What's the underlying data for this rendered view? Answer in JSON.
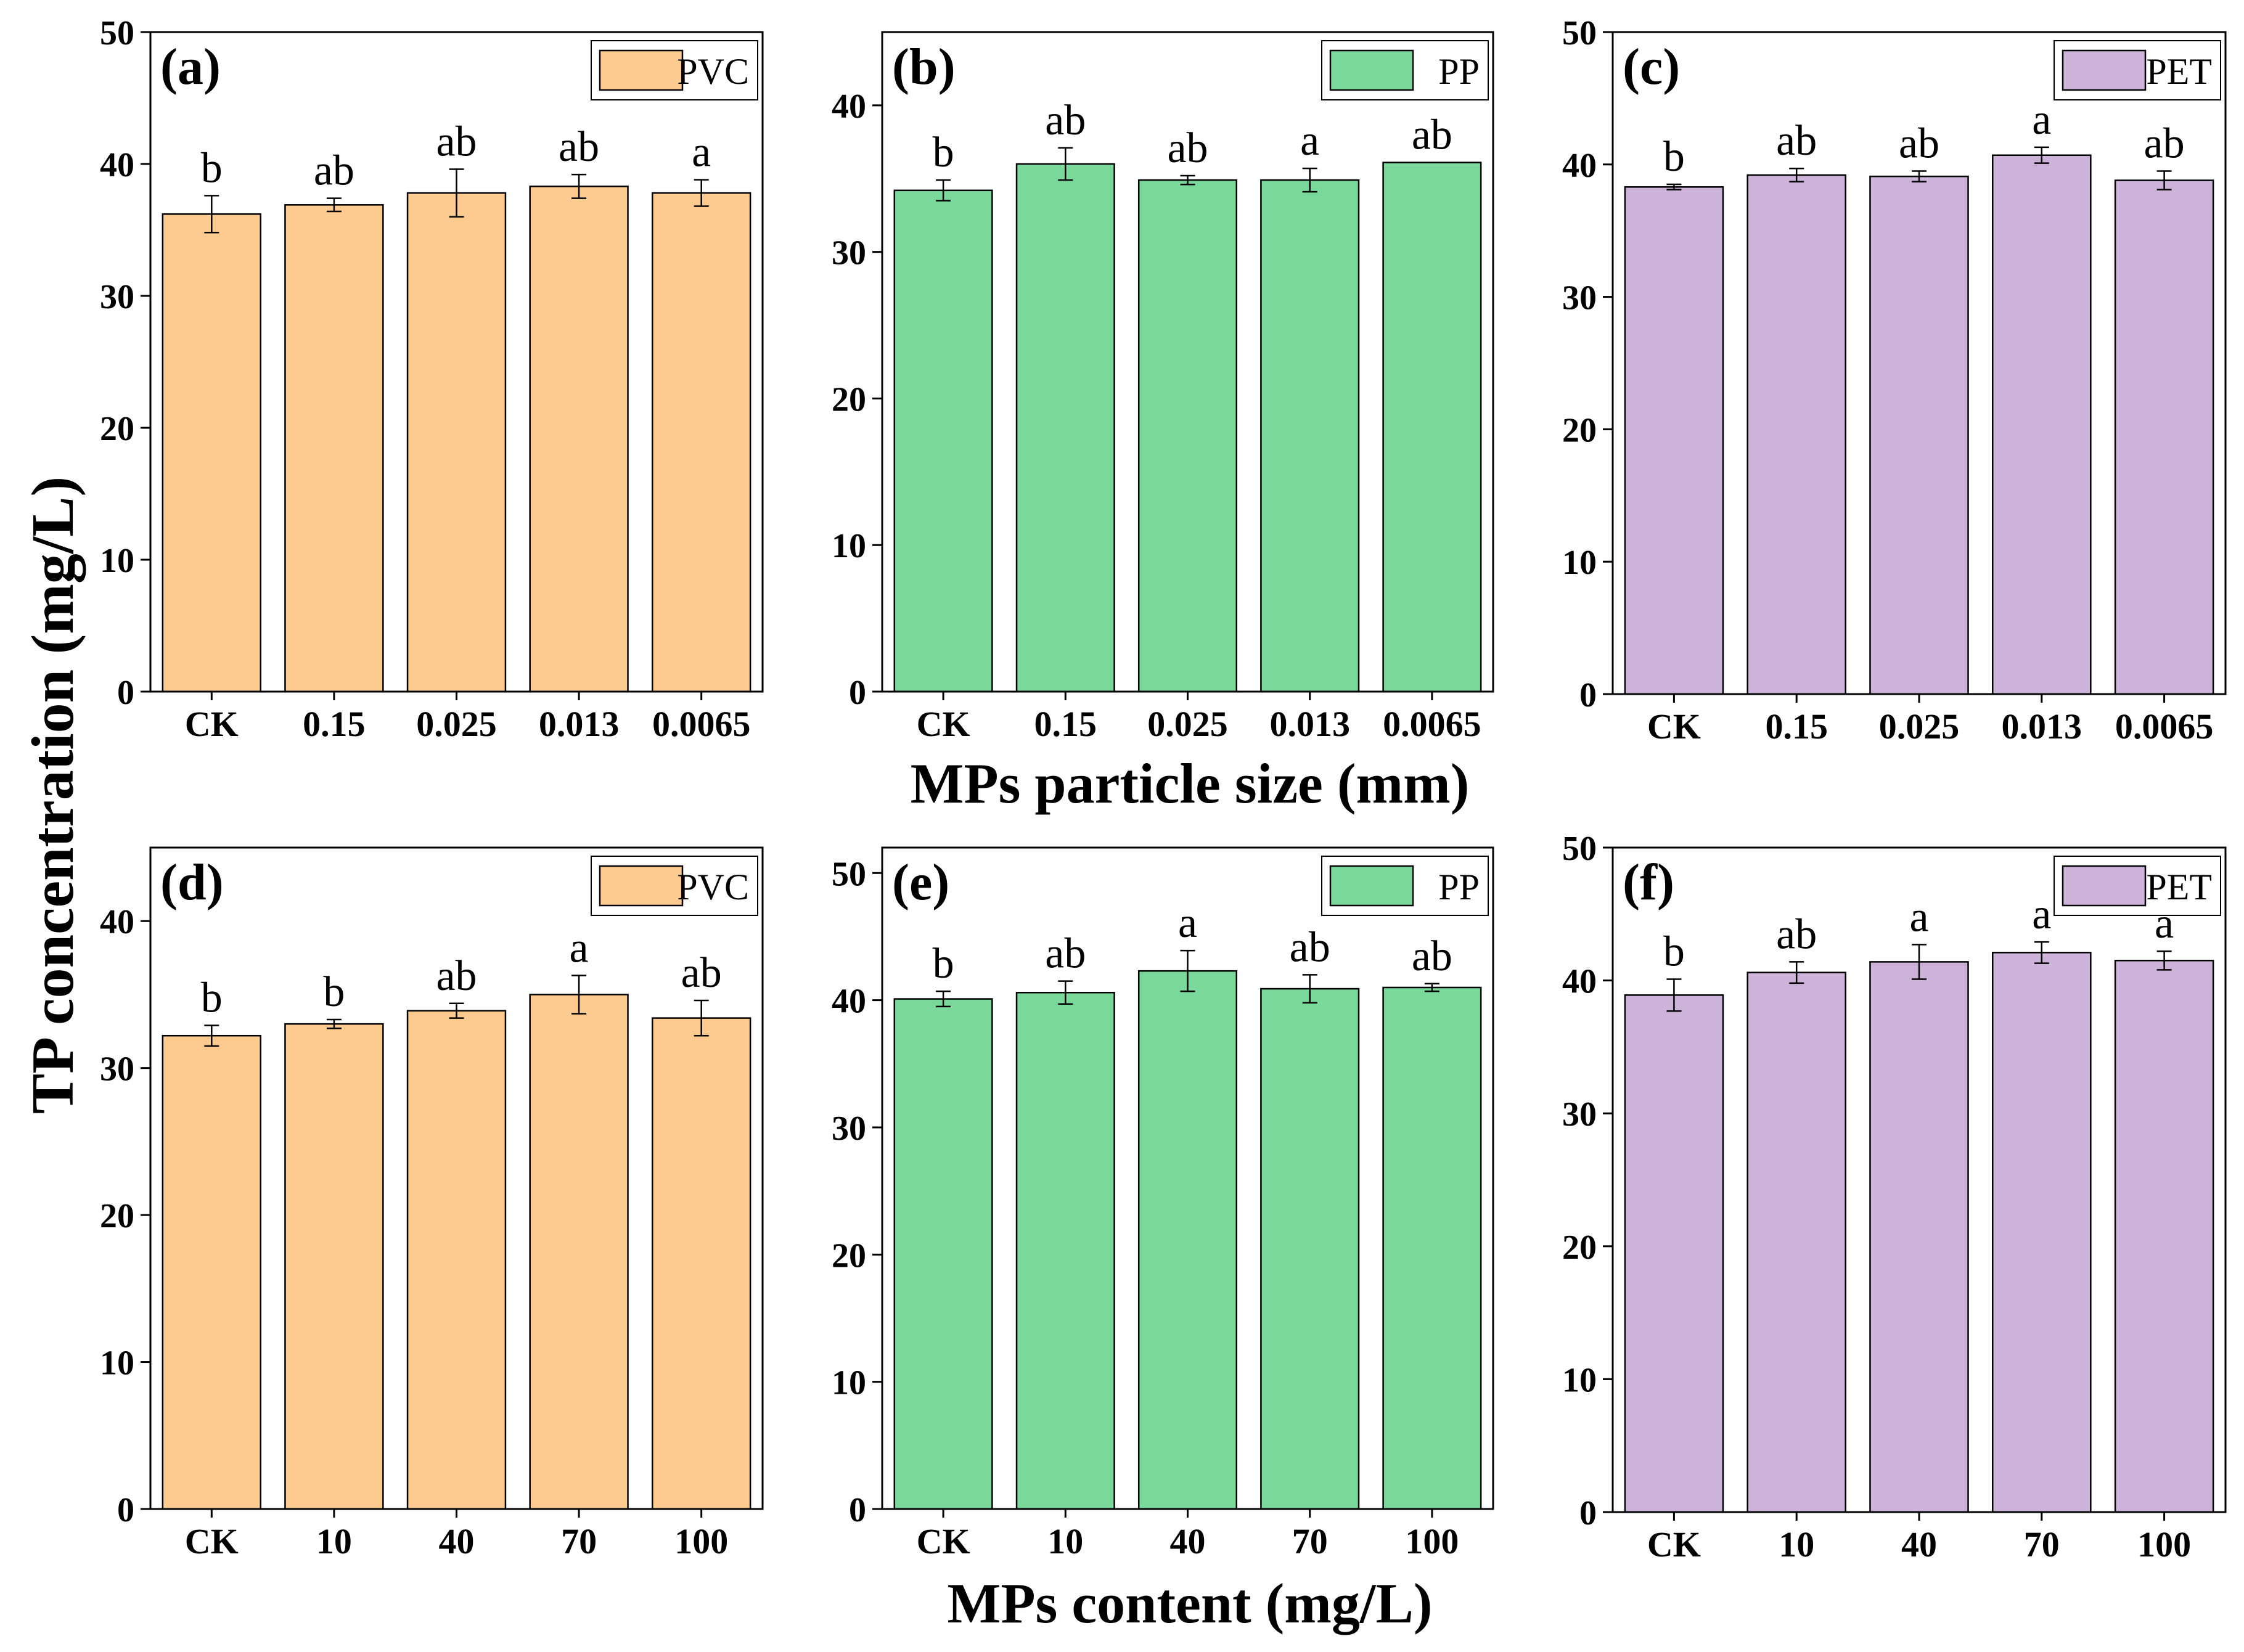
{
  "figure": {
    "y_axis_title": "TP concentration (mg/L)",
    "x_axis_title_top": "MPs particle size (mm)",
    "x_axis_title_bottom": "MPs content (mg/L)"
  },
  "colors": {
    "PVC": "#FDCB90",
    "PP": "#7BD89B",
    "PET": "#CDB3DA",
    "axis": "#000000"
  },
  "chart_data": [
    {
      "type": "bar",
      "panel": "(a)",
      "legend": "PVC",
      "color_key": "PVC",
      "categories": [
        "CK",
        "0.15",
        "0.025",
        "0.013",
        "0.0065"
      ],
      "values": [
        36.2,
        36.9,
        37.8,
        38.3,
        37.8
      ],
      "errors": [
        1.4,
        0.5,
        1.8,
        0.9,
        1.0
      ],
      "significance": [
        "b",
        "ab",
        "ab",
        "ab",
        "a"
      ],
      "ylim": [
        0,
        50
      ],
      "yticks": [
        0,
        10,
        20,
        30,
        40,
        50
      ],
      "xlabel": "MPs particle size (mm)",
      "ylabel": "TP concentration (mg/L)"
    },
    {
      "type": "bar",
      "panel": "(b)",
      "legend": "PP",
      "color_key": "PP",
      "categories": [
        "CK",
        "0.15",
        "0.025",
        "0.013",
        "0.0065"
      ],
      "values": [
        34.2,
        36.0,
        34.9,
        34.9,
        36.1
      ],
      "errors": [
        0.7,
        1.1,
        0.3,
        0.8,
        0.0
      ],
      "significance": [
        "b",
        "ab",
        "ab",
        "a",
        "ab"
      ],
      "ylim": [
        0,
        45
      ],
      "yticks": [
        0,
        10,
        20,
        30,
        40
      ],
      "xlabel": "MPs particle size (mm)",
      "ylabel": "TP concentration (mg/L)"
    },
    {
      "type": "bar",
      "panel": "(c)",
      "legend": "PET",
      "color_key": "PET",
      "categories": [
        "CK",
        "0.15",
        "0.025",
        "0.013",
        "0.0065"
      ],
      "values": [
        38.3,
        39.2,
        39.1,
        40.7,
        38.8
      ],
      "errors": [
        0.2,
        0.5,
        0.4,
        0.6,
        0.7
      ],
      "significance": [
        "b",
        "ab",
        "ab",
        "a",
        "ab"
      ],
      "ylim": [
        0,
        50
      ],
      "yticks": [
        0,
        10,
        20,
        30,
        40,
        50
      ],
      "xlabel": "MPs particle size (mm)",
      "ylabel": "TP concentration (mg/L)"
    },
    {
      "type": "bar",
      "panel": "(d)",
      "legend": "PVC",
      "color_key": "PVC",
      "categories": [
        "CK",
        "10",
        "40",
        "70",
        "100"
      ],
      "values": [
        32.2,
        33.0,
        33.9,
        35.0,
        33.4
      ],
      "errors": [
        0.7,
        0.3,
        0.5,
        1.3,
        1.2
      ],
      "significance": [
        "b",
        "b",
        "ab",
        "a",
        "ab"
      ],
      "ylim": [
        0,
        45
      ],
      "yticks": [
        0,
        10,
        20,
        30,
        40
      ],
      "xlabel": "MPs content (mg/L)",
      "ylabel": "TP concentration (mg/L)"
    },
    {
      "type": "bar",
      "panel": "(e)",
      "legend": "PP",
      "color_key": "PP",
      "categories": [
        "CK",
        "10",
        "40",
        "70",
        "100"
      ],
      "values": [
        40.1,
        40.6,
        42.3,
        40.9,
        41.0
      ],
      "errors": [
        0.6,
        0.9,
        1.6,
        1.1,
        0.3
      ],
      "significance": [
        "b",
        "ab",
        "a",
        "ab",
        "ab"
      ],
      "ylim": [
        0,
        52
      ],
      "yticks": [
        0,
        10,
        20,
        30,
        40,
        50
      ],
      "xlabel": "MPs content (mg/L)",
      "ylabel": "TP concentration (mg/L)"
    },
    {
      "type": "bar",
      "panel": "(f)",
      "legend": "PET",
      "color_key": "PET",
      "categories": [
        "CK",
        "10",
        "40",
        "70",
        "100"
      ],
      "values": [
        38.9,
        40.6,
        41.4,
        42.1,
        41.5
      ],
      "errors": [
        1.2,
        0.8,
        1.3,
        0.8,
        0.7
      ],
      "significance": [
        "b",
        "ab",
        "a",
        "a",
        "a"
      ],
      "ylim": [
        0,
        50
      ],
      "yticks": [
        0,
        10,
        20,
        30,
        40,
        50
      ],
      "xlabel": "MPs content (mg/L)",
      "ylabel": "TP concentration (mg/L)"
    }
  ]
}
